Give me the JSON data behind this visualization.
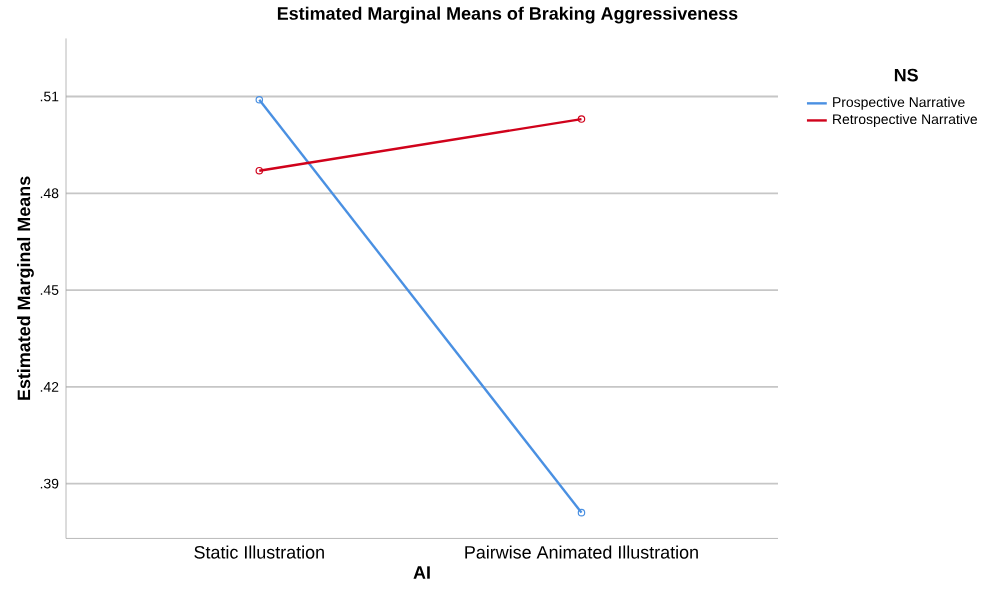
{
  "chart_data": {
    "type": "line",
    "title": "Estimated Marginal Means of Braking Aggressiveness",
    "xlabel": "AI",
    "ylabel": "Estimated Marginal Means",
    "legend_title": "NS",
    "categories": [
      "Static Illustration",
      "Pairwise Animated Illustration"
    ],
    "series": [
      {
        "name": "Prospective Narrative",
        "color": "#4a90e2",
        "values": [
          0.509,
          0.381
        ]
      },
      {
        "name": "Retrospective Narrative",
        "color": "#d0021b",
        "values": [
          0.487,
          0.503
        ]
      }
    ],
    "ylim": [
      0.373,
      0.528
    ],
    "yticks": [
      {
        "value": 0.39,
        "label": ".39"
      },
      {
        "value": 0.42,
        "label": ".42"
      },
      {
        "value": 0.45,
        "label": ".45"
      },
      {
        "value": 0.48,
        "label": ".48"
      },
      {
        "value": 0.51,
        "label": ".51"
      }
    ],
    "grid": "y",
    "legend": "top right",
    "marker": "circle",
    "line_style": "solid"
  }
}
